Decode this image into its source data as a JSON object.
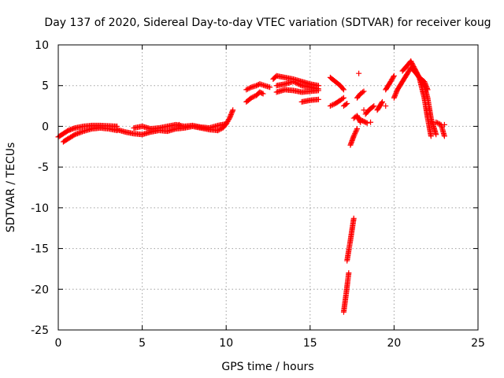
{
  "chart_data": {
    "type": "scatter",
    "title": "Day 137 of 2020, Sidereal Day-to-day VTEC variation (SDTVAR) for receiver koug",
    "xlabel": "GPS time / hours",
    "ylabel": "SDTVAR / TECUs",
    "xlim": [
      0,
      25
    ],
    "ylim": [
      -25,
      10
    ],
    "xticks": [
      0,
      5,
      10,
      15,
      20,
      25
    ],
    "yticks": [
      -25,
      -20,
      -15,
      -10,
      -5,
      0,
      5,
      10
    ],
    "xtick_labels": [
      "0",
      "5",
      "10",
      "15",
      "20",
      "25"
    ],
    "ytick_labels": [
      "-25",
      "-20",
      "-15",
      "-10",
      "-5",
      "0",
      "5",
      "10"
    ],
    "grid": true,
    "marker": "+",
    "color": "#ff0000",
    "segments": [
      {
        "x": [
          0.0,
          0.3,
          0.6,
          1.0,
          1.5,
          2.0,
          2.5,
          3.0,
          3.5
        ],
        "y": [
          -1.3,
          -0.9,
          -0.5,
          -0.2,
          0.0,
          0.1,
          0.1,
          0.05,
          0.0
        ]
      },
      {
        "x": [
          0.3,
          0.6,
          1.0,
          1.5,
          2.0,
          2.5,
          3.0,
          3.5
        ],
        "y": [
          -1.9,
          -1.5,
          -1.0,
          -0.6,
          -0.3,
          -0.2,
          -0.3,
          -0.5
        ]
      },
      {
        "x": [
          3.5,
          4.0,
          4.5,
          5.0,
          5.5,
          6.0,
          6.5,
          7.0,
          7.5,
          8.0,
          8.5,
          9.0,
          9.5
        ],
        "y": [
          -0.4,
          -0.7,
          -0.9,
          -1.0,
          -0.7,
          -0.5,
          -0.6,
          -0.3,
          -0.2,
          0.0,
          -0.2,
          -0.4,
          -0.5
        ]
      },
      {
        "x": [
          4.5,
          5.0,
          5.5,
          6.0,
          6.5,
          7.0,
          7.5,
          8.0,
          8.5,
          9.0,
          9.5,
          10.0
        ],
        "y": [
          -0.2,
          0.0,
          -0.3,
          -0.2,
          0.0,
          0.2,
          0.0,
          0.1,
          -0.1,
          -0.2,
          0.1,
          0.3
        ]
      },
      {
        "x": [
          9.5,
          9.8,
          10.0,
          10.2,
          10.4
        ],
        "y": [
          -0.5,
          -0.2,
          0.3,
          1.0,
          2.0
        ]
      },
      {
        "x": [
          11.2,
          11.5,
          11.8,
          12.0,
          12.3,
          12.6
        ],
        "y": [
          4.5,
          4.8,
          5.0,
          5.2,
          5.0,
          4.8
        ]
      },
      {
        "x": [
          11.2,
          11.5,
          11.8,
          12.0,
          12.2
        ],
        "y": [
          3.0,
          3.5,
          3.8,
          4.2,
          4.0
        ]
      },
      {
        "x": [
          12.8,
          13.0,
          13.5,
          14.0,
          14.5,
          15.0,
          15.5
        ],
        "y": [
          5.8,
          6.2,
          6.0,
          5.8,
          5.5,
          5.2,
          5.0
        ]
      },
      {
        "x": [
          13.0,
          13.5,
          14.0,
          14.5,
          15.0,
          15.5
        ],
        "y": [
          5.0,
          5.2,
          5.5,
          5.0,
          4.8,
          4.6
        ]
      },
      {
        "x": [
          13.0,
          13.5,
          14.0,
          14.5,
          15.0,
          15.5
        ],
        "y": [
          4.2,
          4.5,
          4.4,
          4.2,
          4.3,
          4.4
        ]
      },
      {
        "x": [
          14.5,
          15.0,
          15.5
        ],
        "y": [
          3.0,
          3.2,
          3.3
        ]
      },
      {
        "x": [
          16.2,
          16.5,
          16.8,
          17.0
        ],
        "y": [
          6.0,
          5.5,
          5.0,
          4.5
        ]
      },
      {
        "x": [
          16.2,
          16.5,
          16.8,
          17.0
        ],
        "y": [
          2.5,
          2.8,
          3.2,
          3.5
        ]
      },
      {
        "x": [
          17.0,
          17.2
        ],
        "y": [
          2.5,
          2.8
        ]
      },
      {
        "x": [
          17.0,
          17.15,
          17.3
        ],
        "y": [
          -22.8,
          -20.5,
          -18.0
        ]
      },
      {
        "x": [
          17.2,
          17.4,
          17.6
        ],
        "y": [
          -16.5,
          -14.0,
          -11.3
        ]
      },
      {
        "x": [
          17.4,
          17.6,
          17.8
        ],
        "y": [
          -2.3,
          -1.2,
          -0.3
        ]
      },
      {
        "x": [
          17.6,
          17.8,
          18.0
        ],
        "y": [
          1.0,
          1.3,
          0.5
        ]
      },
      {
        "x": [
          17.8,
          18.0,
          18.2
        ],
        "y": [
          3.5,
          4.0,
          4.3
        ]
      },
      {
        "x": [
          18.3,
          18.5,
          18.8
        ],
        "y": [
          1.5,
          2.0,
          2.5
        ]
      },
      {
        "x": [
          18.0,
          18.4
        ],
        "y": [
          0.8,
          0.4
        ]
      },
      {
        "x": [
          19.0,
          19.3
        ],
        "y": [
          2.0,
          3.0
        ]
      },
      {
        "x": [
          19.5,
          19.8,
          20.0
        ],
        "y": [
          4.5,
          5.5,
          6.2
        ]
      },
      {
        "x": [
          20.0,
          20.2,
          20.5,
          20.8,
          21.0,
          21.2,
          21.5,
          21.8,
          22.0,
          22.2
        ],
        "y": [
          3.5,
          4.5,
          5.5,
          6.5,
          7.2,
          6.8,
          6.0,
          3.5,
          1.0,
          -1.2
        ]
      },
      {
        "x": [
          20.5,
          20.8,
          21.0,
          21.2,
          21.5,
          21.8,
          22.0
        ],
        "y": [
          6.8,
          7.5,
          8.0,
          7.2,
          6.0,
          5.5,
          4.5
        ]
      },
      {
        "x": [
          21.5,
          21.8,
          22.0,
          22.2,
          22.5
        ],
        "y": [
          6.0,
          5.0,
          3.5,
          1.0,
          -1.0
        ]
      },
      {
        "x": [
          22.5,
          22.8,
          23.0
        ],
        "y": [
          0.5,
          0.2,
          -1.2
        ]
      }
    ],
    "isolated_points": [
      {
        "x": 17.9,
        "y": 6.5
      },
      {
        "x": 18.6,
        "y": 0.5
      },
      {
        "x": 19.5,
        "y": 2.5
      },
      {
        "x": 23.0,
        "y": 0.2
      },
      {
        "x": 7.2,
        "y": 0.2
      },
      {
        "x": 18.2,
        "y": 2.0
      }
    ]
  }
}
